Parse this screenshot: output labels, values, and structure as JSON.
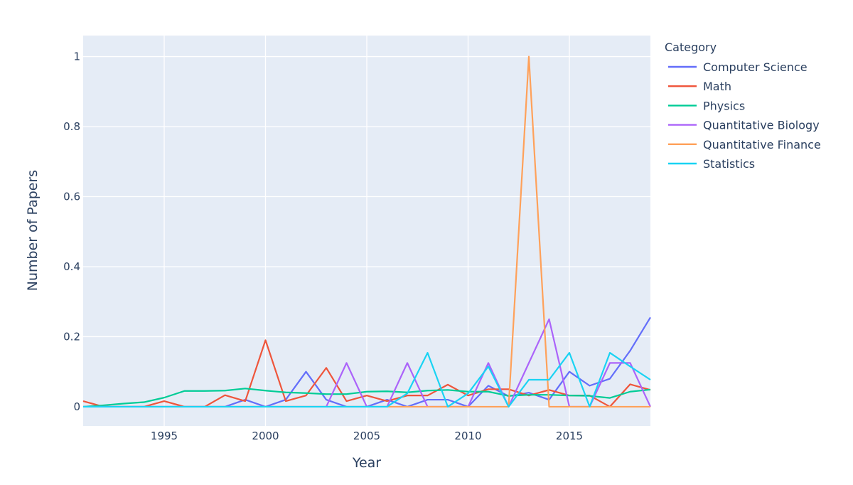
{
  "chart_data": {
    "type": "line",
    "xlabel": "Year",
    "ylabel": "Number of Papers",
    "xlim": [
      1991,
      2019
    ],
    "ylim": [
      -0.055,
      1.06
    ],
    "x_ticks": [
      1995,
      2000,
      2005,
      2010,
      2015
    ],
    "y_ticks": [
      0,
      0.2,
      0.4,
      0.6,
      0.8,
      1
    ],
    "y_tick_labels": [
      "0",
      "0.2",
      "0.4",
      "0.6",
      "0.8",
      "1"
    ],
    "grid": true,
    "legend_title": "Category",
    "legend_position": "right",
    "x": [
      1991,
      1992,
      1993,
      1994,
      1995,
      1996,
      1997,
      1998,
      1999,
      2000,
      2001,
      2002,
      2003,
      2004,
      2005,
      2006,
      2007,
      2008,
      2009,
      2010,
      2011,
      2012,
      2013,
      2014,
      2015,
      2016,
      2017,
      2018,
      2019
    ],
    "series": [
      {
        "name": "Computer Science",
        "color": "#636efa",
        "values": [
          0,
          0,
          0,
          0,
          0,
          0,
          0,
          0,
          0.02,
          0,
          0.02,
          0.1,
          0.02,
          0,
          0,
          0.02,
          0,
          0.02,
          0.02,
          0,
          0.06,
          0.03,
          0.04,
          0.02,
          0.1,
          0.06,
          0.08,
          0.16,
          0.255
        ]
      },
      {
        "name": "Math",
        "color": "#EF553B",
        "values": [
          0.016,
          0,
          0,
          0,
          0.016,
          0,
          0,
          0.033,
          0.016,
          0.19,
          0.016,
          0.032,
          0.111,
          0.016,
          0.032,
          0.016,
          0.032,
          0.032,
          0.063,
          0.032,
          0.05,
          0.05,
          0.032,
          0.048,
          0.032,
          0.032,
          0,
          0.064,
          0.048
        ]
      },
      {
        "name": "Physics",
        "color": "#00cc96",
        "values": [
          0,
          0.004,
          0.009,
          0.013,
          0.026,
          0.045,
          0.045,
          0.046,
          0.052,
          0.046,
          0.041,
          0.039,
          0.036,
          0.036,
          0.043,
          0.044,
          0.041,
          0.046,
          0.048,
          0.043,
          0.043,
          0.031,
          0.034,
          0.034,
          0.032,
          0.031,
          0.025,
          0.043,
          0.049
        ]
      },
      {
        "name": "Quantitative Biology",
        "color": "#ab63fa",
        "values": [
          0,
          0,
          0,
          0,
          0,
          0,
          0,
          0,
          0,
          0,
          0,
          0,
          0,
          0.125,
          0,
          0,
          0.125,
          0,
          0,
          0,
          0.125,
          0,
          0.125,
          0.25,
          0,
          0,
          0.125,
          0.125,
          0
        ]
      },
      {
        "name": "Quantitative Finance",
        "color": "#FFA15A",
        "values": [
          0,
          0,
          0,
          0,
          0,
          0,
          0,
          0,
          0,
          0,
          0,
          0,
          0,
          0,
          0,
          0,
          0,
          0,
          0,
          0,
          0,
          0,
          1,
          0,
          0,
          0,
          0,
          0,
          0
        ]
      },
      {
        "name": "Statistics",
        "color": "#19d3f3",
        "values": [
          0,
          0,
          0,
          0,
          0,
          0,
          0,
          0,
          0,
          0,
          0,
          0,
          0,
          0,
          0,
          0,
          0.038,
          0.154,
          0,
          0.038,
          0.115,
          0,
          0.077,
          0.077,
          0.154,
          0,
          0.154,
          0.115,
          0.077
        ]
      }
    ]
  }
}
